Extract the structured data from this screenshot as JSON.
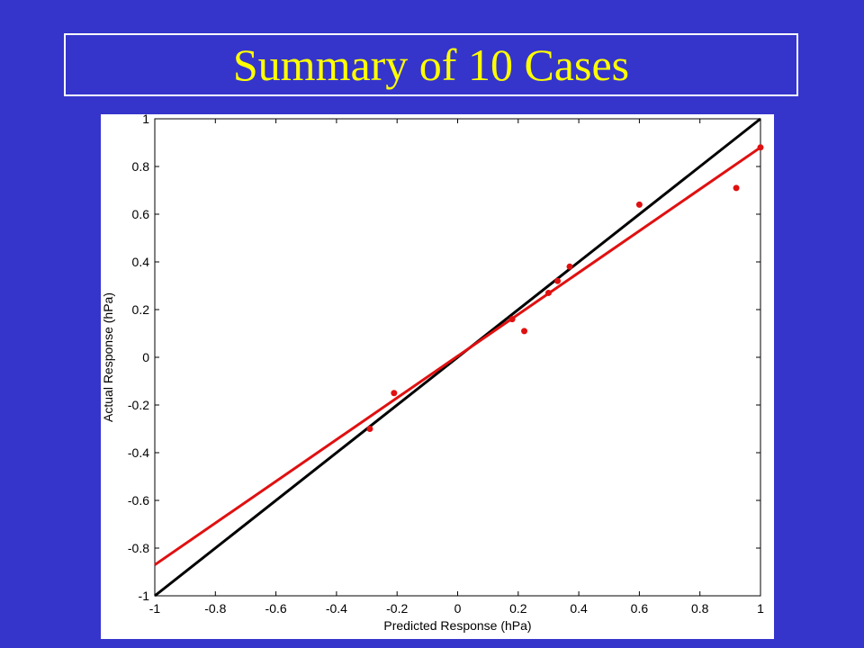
{
  "slide": {
    "title": "Summary of 10 Cases",
    "background_color": "#3535cc",
    "title_color": "#ffff00"
  },
  "chart_data": {
    "type": "scatter",
    "title": "",
    "xlabel": "Predicted Response (hPa)",
    "ylabel": "Actual Response (hPa)",
    "xlim": [
      -1,
      1
    ],
    "ylim": [
      -1,
      1
    ],
    "xticks": [
      "-1",
      "-0.8",
      "-0.6",
      "-0.4",
      "-0.2",
      "0",
      "0.2",
      "0.4",
      "0.6",
      "0.8",
      "1"
    ],
    "yticks": [
      "-1",
      "-0.8",
      "-0.6",
      "-0.4",
      "-0.2",
      "0",
      "0.2",
      "0.4",
      "0.6",
      "0.8",
      "1"
    ],
    "grid": false,
    "points": {
      "color": "#e01010",
      "x": [
        -0.29,
        -0.21,
        0.18,
        0.22,
        0.3,
        0.33,
        0.37,
        0.6,
        0.92,
        1.0
      ],
      "y": [
        -0.3,
        -0.15,
        0.16,
        0.11,
        0.27,
        0.32,
        0.38,
        0.64,
        0.71,
        0.88
      ]
    },
    "lines": [
      {
        "kind": "identity",
        "color": "#000000",
        "x": [
          -1,
          1
        ],
        "y": [
          -1,
          1
        ]
      },
      {
        "kind": "regression",
        "color": "#e01010",
        "x": [
          -1,
          1
        ],
        "y": [
          -0.87,
          0.88
        ]
      }
    ]
  }
}
